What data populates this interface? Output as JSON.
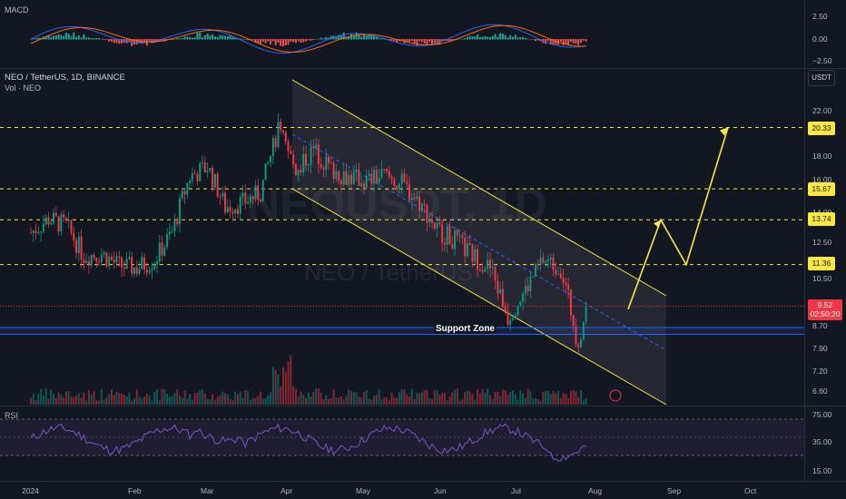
{
  "macd": {
    "title": "MACD",
    "ticks": [
      "2.50",
      "0.00",
      "−2.50"
    ]
  },
  "main": {
    "symbol_line": "NEO / TetherUS, 1D, BINANCE",
    "volume_label": "Vol · NEO",
    "watermark_ticker": "NEOUSDT, 1D",
    "watermark_name": "NEO / TetherUS",
    "currency_button": "USDT",
    "ticks": [
      "22.00",
      "18.00",
      "16.00",
      "14.00",
      "12.50",
      "10.50",
      "8.70",
      "7.90",
      "7.20",
      "6.60"
    ],
    "level_badges": [
      "20.33",
      "15.67",
      "13.74",
      "11.36"
    ],
    "current_price": "9.52",
    "countdown": "02:50:20",
    "support_label": "Support Zone"
  },
  "rsi": {
    "title": "RSI",
    "ticks": [
      "75.00",
      "35.00",
      "15.00"
    ]
  },
  "xaxis": {
    "labels": [
      "2024",
      "Feb",
      "Mar",
      "Apr",
      "May",
      "Jun",
      "Jul",
      "Aug",
      "Sep",
      "Oct"
    ]
  },
  "colors": {
    "up": "#089981",
    "down": "#f23645",
    "background": "#131722",
    "channel": "#f7e940",
    "level": "#f7e940",
    "support": "#2962ff",
    "rsi": "#7e57c2",
    "macd": "#2962ff",
    "signal": "#ff6d00"
  },
  "chart_data": {
    "type": "candlestick",
    "series_name": "NEO / TetherUS",
    "interval": "1D",
    "exchange": "BINANCE",
    "ylim": [
      6.3,
      23.0
    ],
    "y_scale": "log",
    "approx_closes": [
      {
        "x": "2024-01-01",
        "y": 13.0
      },
      {
        "x": "2024-01-08",
        "y": 13.8
      },
      {
        "x": "2024-01-15",
        "y": 13.4
      },
      {
        "x": "2024-01-22",
        "y": 11.8
      },
      {
        "x": "2024-01-29",
        "y": 11.9
      },
      {
        "x": "2024-02-05",
        "y": 11.3
      },
      {
        "x": "2024-02-12",
        "y": 11.2
      },
      {
        "x": "2024-02-19",
        "y": 11.6
      },
      {
        "x": "2024-02-26",
        "y": 13.0
      },
      {
        "x": "2024-03-04",
        "y": 16.5
      },
      {
        "x": "2024-03-11",
        "y": 17.2
      },
      {
        "x": "2024-03-18",
        "y": 14.5
      },
      {
        "x": "2024-03-25",
        "y": 14.8
      },
      {
        "x": "2024-04-01",
        "y": 15.4
      },
      {
        "x": "2024-04-08",
        "y": 20.0
      },
      {
        "x": "2024-04-15",
        "y": 17.0
      },
      {
        "x": "2024-04-22",
        "y": 18.5
      },
      {
        "x": "2024-04-29",
        "y": 17.0
      },
      {
        "x": "2024-05-06",
        "y": 16.5
      },
      {
        "x": "2024-05-13",
        "y": 16.2
      },
      {
        "x": "2024-05-20",
        "y": 16.6
      },
      {
        "x": "2024-05-27",
        "y": 16.0
      },
      {
        "x": "2024-06-03",
        "y": 14.8
      },
      {
        "x": "2024-06-10",
        "y": 13.2
      },
      {
        "x": "2024-06-17",
        "y": 12.6
      },
      {
        "x": "2024-06-24",
        "y": 11.8
      },
      {
        "x": "2024-07-01",
        "y": 11.2
      },
      {
        "x": "2024-07-08",
        "y": 9.1
      },
      {
        "x": "2024-07-15",
        "y": 10.2
      },
      {
        "x": "2024-07-22",
        "y": 11.6
      },
      {
        "x": "2024-07-29",
        "y": 11.2
      },
      {
        "x": "2024-08-05",
        "y": 8.0
      },
      {
        "x": "2024-08-08",
        "y": 9.52
      }
    ],
    "horizontal_levels": [
      20.33,
      15.67,
      13.74,
      11.36
    ],
    "support_zone": [
      8.45,
      8.7
    ],
    "projection_path": [
      9.4,
      13.74,
      11.36,
      20.33
    ]
  }
}
